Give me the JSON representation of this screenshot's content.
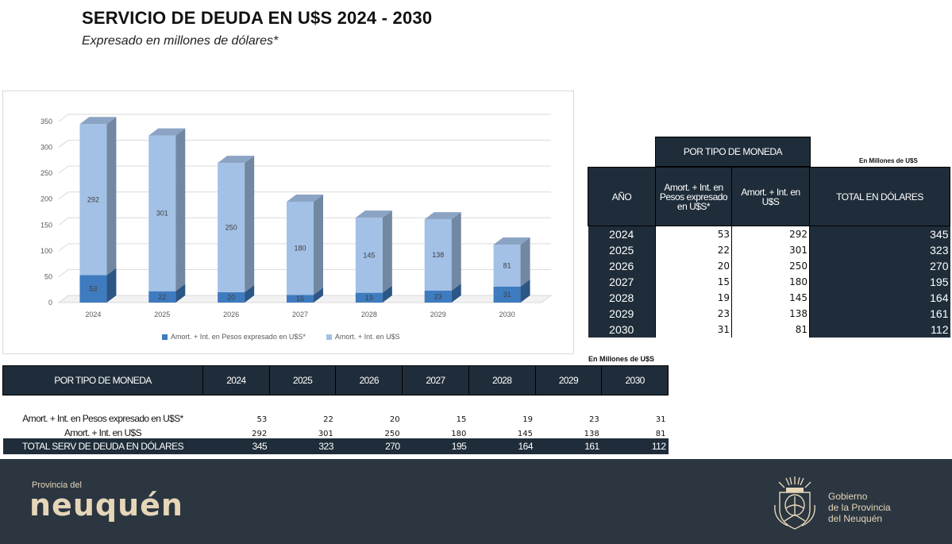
{
  "header": {
    "title": "SERVICIO DE DEUDA EN U$S 2024 - 2030",
    "subtitle": "Expresado en millones de dólares*"
  },
  "chart_data": {
    "type": "bar",
    "stacked": true,
    "categories": [
      "2024",
      "2025",
      "2026",
      "2027",
      "2028",
      "2029",
      "2030"
    ],
    "series": [
      {
        "name": "Amort. + Int. en Pesos expresado en U$S*",
        "values": [
          53,
          22,
          20,
          15,
          19,
          23,
          31
        ],
        "color": "#3e7bbf"
      },
      {
        "name": "Amort. + Int. en U$S",
        "values": [
          292,
          301,
          250,
          180,
          145,
          138,
          81
        ],
        "color": "#a3c1e6"
      }
    ],
    "ylim": [
      0,
      350
    ],
    "yticks": [
      "0",
      "50",
      "100",
      "150",
      "200",
      "250",
      "300",
      "350"
    ],
    "grid": true,
    "legend": "bottom"
  },
  "right_table": {
    "unit": "En Millones de U$S",
    "group_header": "POR TIPO DE MONEDA",
    "col_year": "AÑO",
    "col_pesos": "Amort. + Int. en Pesos expresado en U$S*",
    "col_usd": "Amort. + Int. en U$S",
    "col_total": "TOTAL EN DÓLARES",
    "rows": [
      {
        "year": "2024",
        "pesos": "53",
        "usd": "292",
        "total": "345"
      },
      {
        "year": "2025",
        "pesos": "22",
        "usd": "301",
        "total": "323"
      },
      {
        "year": "2026",
        "pesos": "20",
        "usd": "250",
        "total": "270"
      },
      {
        "year": "2027",
        "pesos": "15",
        "usd": "180",
        "total": "195"
      },
      {
        "year": "2028",
        "pesos": "19",
        "usd": "145",
        "total": "164"
      },
      {
        "year": "2029",
        "pesos": "23",
        "usd": "138",
        "total": "161"
      },
      {
        "year": "2030",
        "pesos": "31",
        "usd": "81",
        "total": "112"
      }
    ]
  },
  "bottom_table": {
    "unit": "En Millones de U$S",
    "corner": "POR TIPO DE MONEDA",
    "years": [
      "2024",
      "2025",
      "2026",
      "2027",
      "2028",
      "2029",
      "2030"
    ],
    "row_pesos_label": "Amort. + Int. en Pesos expresado en U$S*",
    "row_pesos": [
      "53",
      "22",
      "20",
      "15",
      "19",
      "23",
      "31"
    ],
    "row_usd_label": "Amort. + Int. en U$S",
    "row_usd": [
      "292",
      "301",
      "250",
      "180",
      "145",
      "138",
      "81"
    ],
    "row_total_label": "TOTAL SERV DE DEUDA EN DÓLARES",
    "row_total": [
      "345",
      "323",
      "270",
      "195",
      "164",
      "161",
      "112"
    ]
  },
  "footer": {
    "prov_small": "Provincia del",
    "prov_big": "neuquén",
    "gob_line1": "Gobierno",
    "gob_line2": "de la Provincia",
    "gob_line3": "del Neuquén"
  }
}
